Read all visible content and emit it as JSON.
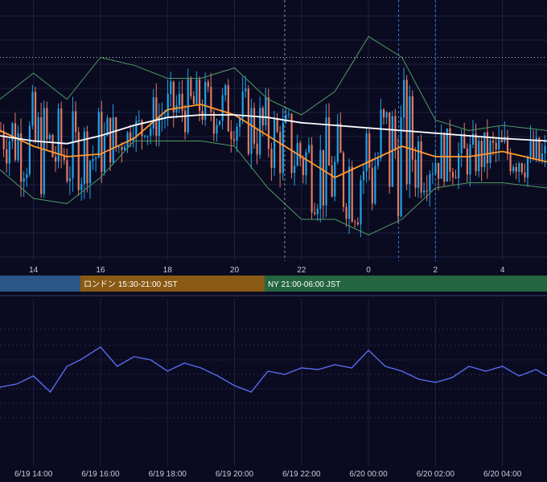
{
  "colors": {
    "background": "#0a0b21",
    "grid": "#1f2240",
    "candle_up": "#22a2e6",
    "candle_down": "#e27a62",
    "ma_long": "#ffffff",
    "ma_short": "#ff9a2e",
    "bollinger": "#4f9a63",
    "rsi_line": "#5a6bf0",
    "session_tokyo": "#2a5688",
    "session_london": "#8a5a14",
    "session_ny": "#236640"
  },
  "top_axis": {
    "ticks": [
      "14",
      "16",
      "18",
      "20",
      "22",
      "0",
      "2",
      "4"
    ]
  },
  "sessions": [
    {
      "name": "tokyo",
      "label": ""
    },
    {
      "name": "london",
      "label": "ロンドン 15:30-21:00 JST"
    },
    {
      "name": "ny",
      "label": "NY 21:00-06:00 JST"
    }
  ],
  "bottom_axis": {
    "ticks": [
      "6/19 14:00",
      "6/19 16:00",
      "6/19 18:00",
      "6/19 20:00",
      "6/19 22:00",
      "6/20 00:00",
      "6/20 02:00",
      "6/20 04:00"
    ]
  },
  "chart_data": [
    {
      "type": "line",
      "title": "",
      "xlabel": "",
      "ylabel": "",
      "x_range": [
        "6/19 13:00",
        "6/20 05:20"
      ],
      "y_range": [
        0,
        100
      ],
      "grid": true,
      "legend": "none",
      "overlays": [
        "candlesticks",
        "moving average (white)",
        "moving average (orange)",
        "bollinger bands (green)"
      ],
      "series": [
        {
          "key": "ma_long",
          "values": [
            [
              13.0,
              48
            ],
            [
              14.0,
              46
            ],
            [
              15.0,
              45
            ],
            [
              16.0,
              48
            ],
            [
              17.0,
              52
            ],
            [
              18.0,
              55
            ],
            [
              19.0,
              56
            ],
            [
              20.0,
              56
            ],
            [
              21.0,
              55
            ],
            [
              22.0,
              53
            ],
            [
              23.0,
              52
            ],
            [
              24.0,
              51
            ],
            [
              25.0,
              50
            ],
            [
              26.0,
              49
            ],
            [
              27.0,
              48
            ],
            [
              28.0,
              47
            ],
            [
              29.33,
              46
            ]
          ]
        },
        {
          "key": "ma_short",
          "values": [
            [
              13.0,
              50
            ],
            [
              14.0,
              44
            ],
            [
              15.0,
              40
            ],
            [
              16.0,
              41
            ],
            [
              17.0,
              47
            ],
            [
              18.0,
              58
            ],
            [
              19.0,
              60
            ],
            [
              20.0,
              56
            ],
            [
              21.0,
              48
            ],
            [
              22.0,
              40
            ],
            [
              23.0,
              32
            ],
            [
              24.0,
              38
            ],
            [
              25.0,
              44
            ],
            [
              26.0,
              40
            ],
            [
              27.0,
              40
            ],
            [
              28.0,
              42
            ],
            [
              29.33,
              38
            ]
          ]
        },
        {
          "key": "bb_upper",
          "values": [
            [
              13.0,
              62
            ],
            [
              14.0,
              72
            ],
            [
              15.0,
              62
            ],
            [
              16.0,
              78
            ],
            [
              17.0,
              75
            ],
            [
              18.0,
              70
            ],
            [
              19.0,
              70
            ],
            [
              20.0,
              74
            ],
            [
              21.0,
              62
            ],
            [
              22.0,
              56
            ],
            [
              23.0,
              65
            ],
            [
              24.0,
              86
            ],
            [
              25.0,
              78
            ],
            [
              26.0,
              54
            ],
            [
              27.0,
              50
            ],
            [
              28.0,
              52
            ],
            [
              29.33,
              50
            ]
          ]
        },
        {
          "key": "bb_lower",
          "values": [
            [
              13.0,
              35
            ],
            [
              14.0,
              24
            ],
            [
              15.0,
              22
            ],
            [
              16.0,
              32
            ],
            [
              17.0,
              46
            ],
            [
              18.0,
              46
            ],
            [
              19.0,
              46
            ],
            [
              20.0,
              44
            ],
            [
              21.0,
              28
            ],
            [
              22.0,
              16
            ],
            [
              23.0,
              16
            ],
            [
              24.0,
              10
            ],
            [
              25.0,
              16
            ],
            [
              26.0,
              28
            ],
            [
              27.0,
              30
            ],
            [
              28.0,
              30
            ],
            [
              29.33,
              28
            ]
          ]
        },
        {
          "key": "high_line_level",
          "values": [
            [
              13.0,
              78
            ],
            [
              29.33,
              78
            ]
          ]
        }
      ]
    },
    {
      "type": "line",
      "title": "",
      "xlabel": "",
      "ylabel": "",
      "x_range": [
        "6/19 13:00",
        "6/20 05:20"
      ],
      "y_range": [
        0,
        100
      ],
      "grid": true,
      "legend": "none",
      "series": [
        {
          "key": "oscillator",
          "values": [
            [
              13.0,
              45
            ],
            [
              13.5,
              47
            ],
            [
              14.0,
              52
            ],
            [
              14.5,
              42
            ],
            [
              15.0,
              58
            ],
            [
              15.4,
              62
            ],
            [
              16.0,
              70
            ],
            [
              16.5,
              58
            ],
            [
              17.0,
              64
            ],
            [
              17.5,
              62
            ],
            [
              18.0,
              55
            ],
            [
              18.5,
              60
            ],
            [
              19.0,
              57
            ],
            [
              19.5,
              52
            ],
            [
              20.0,
              46
            ],
            [
              20.5,
              42
            ],
            [
              21.0,
              55
            ],
            [
              21.5,
              53
            ],
            [
              22.0,
              57
            ],
            [
              22.5,
              56
            ],
            [
              23.0,
              59
            ],
            [
              23.5,
              57
            ],
            [
              24.0,
              68
            ],
            [
              24.5,
              58
            ],
            [
              25.0,
              55
            ],
            [
              25.5,
              50
            ],
            [
              26.0,
              48
            ],
            [
              26.5,
              51
            ],
            [
              27.0,
              58
            ],
            [
              27.5,
              55
            ],
            [
              28.0,
              58
            ],
            [
              28.5,
              52
            ],
            [
              29.0,
              56
            ],
            [
              29.33,
              52
            ]
          ]
        }
      ]
    }
  ]
}
